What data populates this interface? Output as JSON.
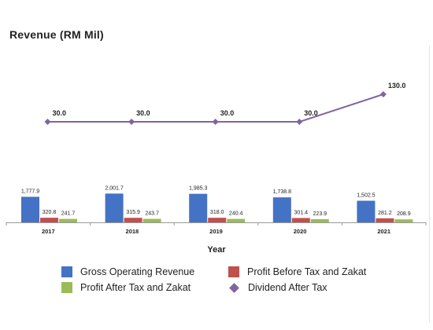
{
  "chart_data": {
    "type": "bar",
    "title": "Revenue (RM Mil)",
    "xlabel": "Year",
    "categories": [
      "2017",
      "2018",
      "2019",
      "2020",
      "2021"
    ],
    "series": [
      {
        "name": "Gross Operating Revenue",
        "type": "bar",
        "color": "#4472C4",
        "values": [
          1777.9,
          2001.7,
          1985.3,
          1738.8,
          1502.5
        ],
        "labels": [
          "1,777.9",
          "2,001.7",
          "1,985.3",
          "1,738.8",
          "1,502.5"
        ]
      },
      {
        "name": "Profit Before Tax and Zakat",
        "type": "bar",
        "color": "#C0504D",
        "values": [
          320.8,
          315.9,
          318.0,
          301.4,
          281.2
        ],
        "labels": [
          "320.8",
          "315.9",
          "318.0",
          "301.4",
          "281.2"
        ]
      },
      {
        "name": "Profit After Tax and Zakat",
        "type": "bar",
        "color": "#9BBB59",
        "values": [
          241.7,
          243.7,
          240.4,
          223.9,
          208.9
        ],
        "labels": [
          "241.7",
          "243.7",
          "240.4",
          "223.9",
          "208.9"
        ]
      },
      {
        "name": "Dividend After Tax",
        "type": "line",
        "color": "#8064A2",
        "values": [
          30.0,
          30.0,
          30.0,
          30.0,
          130.0
        ],
        "labels": [
          "30.0",
          "30.0",
          "30.0",
          "30.0",
          "130.0"
        ]
      }
    ],
    "legend_position": "bottom"
  }
}
